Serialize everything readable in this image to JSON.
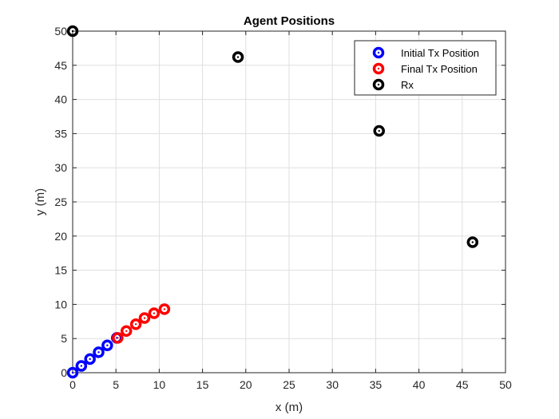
{
  "chart_data": {
    "type": "scatter",
    "title": "Agent Positions",
    "xlabel": "x (m)",
    "ylabel": "y (m)",
    "xlim": [
      0,
      50
    ],
    "ylim": [
      0,
      50
    ],
    "xticks": [
      0,
      5,
      10,
      15,
      20,
      25,
      30,
      35,
      40,
      45,
      50
    ],
    "yticks": [
      0,
      5,
      10,
      15,
      20,
      25,
      30,
      35,
      40,
      45,
      50
    ],
    "xtick_labels": [
      "0",
      "5",
      "10",
      "15",
      "20",
      "25",
      "30",
      "35",
      "40",
      "45",
      "50"
    ],
    "ytick_labels": [
      "0",
      "5",
      "10",
      "15",
      "20",
      "25",
      "30",
      "35",
      "40",
      "45",
      "50"
    ],
    "grid": true,
    "legend_position": "top-right",
    "series": [
      {
        "name": "Initial Tx Position",
        "color": "#0000ff",
        "points": [
          {
            "x": 0,
            "y": 0
          },
          {
            "x": 1.0,
            "y": 1.0
          },
          {
            "x": 2.0,
            "y": 2.0
          },
          {
            "x": 3.0,
            "y": 3.0
          },
          {
            "x": 4.0,
            "y": 4.0
          },
          {
            "x": 5.1,
            "y": 5.1
          }
        ]
      },
      {
        "name": "Final Tx Position",
        "color": "#ff0000",
        "points": [
          {
            "x": 5.2,
            "y": 5.1
          },
          {
            "x": 6.2,
            "y": 6.1
          },
          {
            "x": 7.3,
            "y": 7.1
          },
          {
            "x": 8.3,
            "y": 8.0
          },
          {
            "x": 9.4,
            "y": 8.7
          },
          {
            "x": 10.6,
            "y": 9.3
          }
        ]
      },
      {
        "name": "Rx",
        "color": "#000000",
        "points": [
          {
            "x": 0,
            "y": 50
          },
          {
            "x": 19.1,
            "y": 46.2
          },
          {
            "x": 35.4,
            "y": 35.4
          },
          {
            "x": 46.2,
            "y": 19.1
          }
        ]
      }
    ]
  }
}
